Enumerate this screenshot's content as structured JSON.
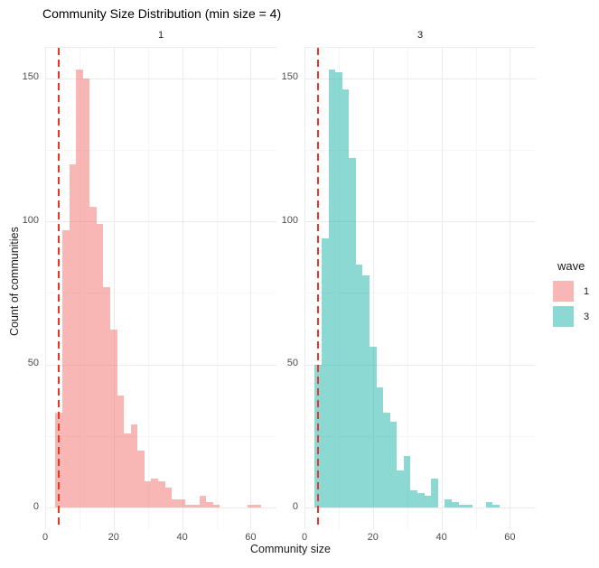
{
  "chart_data": {
    "type": "histogram",
    "title": "Community Size Distribution (min size = 4)",
    "xlabel": "Community size",
    "ylabel": "Count of communities",
    "x_ticks": [
      0,
      20,
      40,
      60
    ],
    "x_minor": [
      10,
      30,
      50
    ],
    "y_ticks": [
      0,
      50,
      100,
      150
    ],
    "y_minor": [
      25,
      75,
      125
    ],
    "xlim": [
      0,
      67.5
    ],
    "ylim": [
      -8,
      160.5
    ],
    "binwidth": 2,
    "grid": "on",
    "legend_position": "right",
    "min_size_line": {
      "x": 4,
      "color": "#EE3525",
      "style": "dashed"
    },
    "colors": {
      "wave1_fill": "rgba(241,111,107,0.5)",
      "wave3_fill": "rgba(25,179,167,0.5)",
      "grid_major": "#EBEBEB",
      "grid_minor": "#F5F5F5",
      "tick_text": "#4D4D4D",
      "vline_red": "#EE3525"
    },
    "legend": {
      "title": "wave",
      "entries": [
        {
          "label": "1",
          "color": "rgba(241,111,107,0.5)"
        },
        {
          "label": "3",
          "color": "rgba(25,179,167,0.5)"
        }
      ]
    },
    "facets": [
      {
        "label": "1",
        "fill": "rgba(241,111,107,0.5)",
        "bins": [
          [
            4,
            33
          ],
          [
            6,
            97
          ],
          [
            8,
            120
          ],
          [
            10,
            153
          ],
          [
            12,
            150
          ],
          [
            14,
            105
          ],
          [
            16,
            99
          ],
          [
            18,
            77
          ],
          [
            20,
            62
          ],
          [
            22,
            39
          ],
          [
            24,
            26
          ],
          [
            26,
            29
          ],
          [
            28,
            20
          ],
          [
            30,
            9
          ],
          [
            32,
            10
          ],
          [
            34,
            9
          ],
          [
            36,
            7
          ],
          [
            38,
            3
          ],
          [
            40,
            3
          ],
          [
            42,
            1
          ],
          [
            44,
            1
          ],
          [
            46,
            4
          ],
          [
            48,
            2
          ],
          [
            50,
            1
          ],
          [
            60,
            1
          ],
          [
            62,
            1
          ]
        ]
      },
      {
        "label": "3",
        "fill": "rgba(25,179,167,0.5)",
        "bins": [
          [
            4,
            50
          ],
          [
            6,
            94
          ],
          [
            8,
            153
          ],
          [
            10,
            152
          ],
          [
            12,
            146
          ],
          [
            14,
            122
          ],
          [
            16,
            85
          ],
          [
            18,
            81
          ],
          [
            20,
            56
          ],
          [
            22,
            42
          ],
          [
            24,
            33
          ],
          [
            26,
            30
          ],
          [
            28,
            13
          ],
          [
            30,
            18
          ],
          [
            32,
            6
          ],
          [
            34,
            5
          ],
          [
            36,
            4
          ],
          [
            38,
            10
          ],
          [
            42,
            3
          ],
          [
            44,
            2
          ],
          [
            46,
            1
          ],
          [
            48,
            1
          ],
          [
            54,
            2
          ],
          [
            56,
            1
          ]
        ]
      }
    ]
  }
}
